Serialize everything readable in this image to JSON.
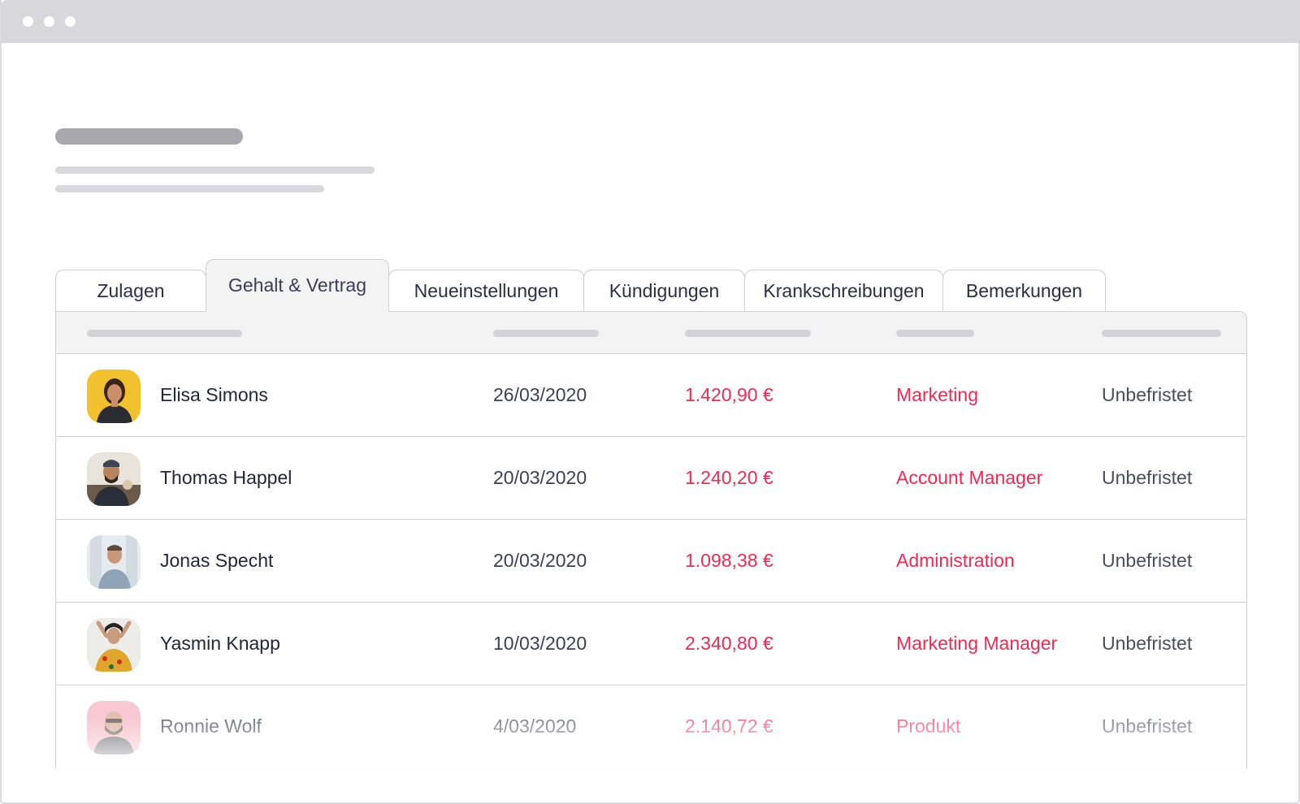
{
  "tabs": [
    {
      "label": "Zulagen"
    },
    {
      "label": "Gehalt & Vertrag"
    },
    {
      "label": "Neueinstellungen"
    },
    {
      "label": "Kündigungen"
    },
    {
      "label": "Krankschreibungen"
    },
    {
      "label": "Bemerkungen"
    }
  ],
  "active_tab": "Gehalt & Vertrag",
  "colors": {
    "accent": "#ee2a55",
    "text": "#23263a",
    "border": "#cfcfd4",
    "header_bg": "#f3f3f4"
  },
  "rows": [
    {
      "name": "Elisa Simons",
      "date": "26/03/2020",
      "salary": "1.420,90 €",
      "department": "Marketing",
      "contract": "Unbefristet",
      "avatar": "avatar-woman-yellow"
    },
    {
      "name": "Thomas Happel",
      "date": "20/03/2020",
      "salary": "1.240,20 €",
      "department": "Account Manager",
      "contract": "Unbefristet",
      "avatar": "avatar-man-beard"
    },
    {
      "name": "Jonas Specht",
      "date": "20/03/2020",
      "salary": "1.098,38 €",
      "department": "Administration",
      "contract": "Unbefristet",
      "avatar": "avatar-man-grey"
    },
    {
      "name": "Yasmin Knapp",
      "date": "10/03/2020",
      "salary": "2.340,80 €",
      "department": "Marketing Manager",
      "contract": "Unbefristet",
      "avatar": "avatar-woman-floral"
    },
    {
      "name": "Ronnie Wolf",
      "date": "4/03/2020",
      "salary": "2.140,72 €",
      "department": "Produkt",
      "contract": "Unbefristet",
      "avatar": "avatar-man-pink"
    }
  ]
}
